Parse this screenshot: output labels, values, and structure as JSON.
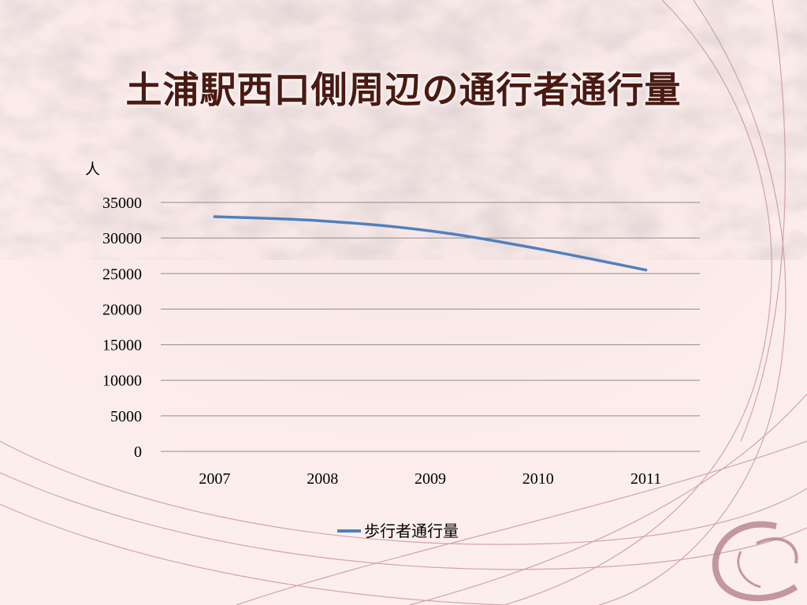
{
  "slide": {
    "title": "土浦駅西口側周辺の通行者通行量"
  },
  "chart_data": {
    "type": "line",
    "ylabel": "人",
    "categories": [
      "2007",
      "2008",
      "2009",
      "2010",
      "2011"
    ],
    "y_ticks": [
      "0",
      "5000",
      "10000",
      "15000",
      "20000",
      "25000",
      "30000",
      "35000"
    ],
    "ylim": [
      0,
      35000
    ],
    "grid": true,
    "legend_position": "bottom",
    "series": [
      {
        "name": "歩行者通行量",
        "color": "#4f81bd",
        "values": [
          33000,
          32400,
          31000,
          28500,
          25500
        ]
      }
    ]
  }
}
